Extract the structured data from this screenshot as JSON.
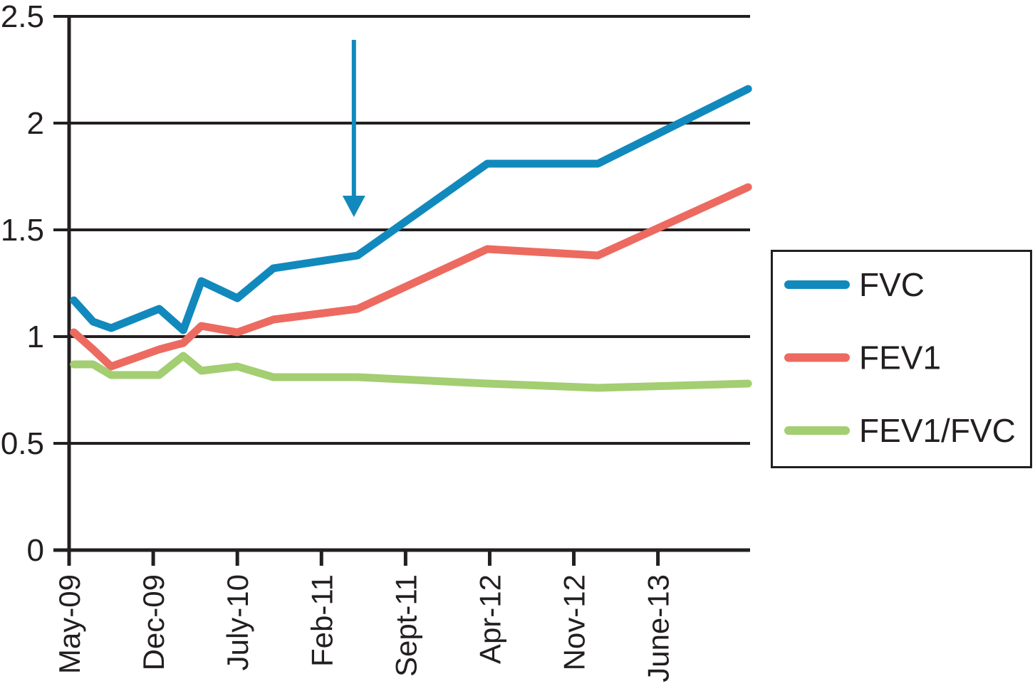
{
  "chart_data": {
    "type": "line",
    "title": "",
    "xlabel": "",
    "ylabel": "",
    "ylim": [
      0,
      2.5
    ],
    "xlim_months": [
      -1.3,
      56.7
    ],
    "grid": true,
    "legend_position": "right",
    "y_ticks": [
      {
        "value": 0,
        "label": "0"
      },
      {
        "value": 0.5,
        "label": "0.5"
      },
      {
        "value": 1,
        "label": "1"
      },
      {
        "value": 1.5,
        "label": "1.5"
      },
      {
        "value": 2,
        "label": "2"
      },
      {
        "value": 2.5,
        "label": "2.5"
      }
    ],
    "x_ticks": [
      {
        "month": 0,
        "label": "May-09"
      },
      {
        "month": 7,
        "label": "Dec-09"
      },
      {
        "month": 14,
        "label": "July-10"
      },
      {
        "month": 21,
        "label": "Feb-11"
      },
      {
        "month": 28,
        "label": "Sept-11"
      },
      {
        "month": 35,
        "label": "Apr-12"
      },
      {
        "month": 42,
        "label": "Nov-12"
      },
      {
        "month": 49,
        "label": "June-13"
      }
    ],
    "series": [
      {
        "name": "FVC",
        "color": "#1189BD",
        "points": [
          [
            0.4,
            1.17
          ],
          [
            2,
            1.07
          ],
          [
            3.5,
            1.04
          ],
          [
            7.5,
            1.13
          ],
          [
            9.5,
            1.03
          ],
          [
            11,
            1.26
          ],
          [
            14,
            1.18
          ],
          [
            17,
            1.32
          ],
          [
            24,
            1.38
          ],
          [
            34.8,
            1.81
          ],
          [
            44,
            1.81
          ],
          [
            56.5,
            2.16
          ]
        ]
      },
      {
        "name": "FEV1",
        "color": "#ED6A60",
        "points": [
          [
            0.4,
            1.02
          ],
          [
            2,
            0.94
          ],
          [
            3.5,
            0.86
          ],
          [
            7.5,
            0.94
          ],
          [
            9.5,
            0.97
          ],
          [
            11,
            1.05
          ],
          [
            14,
            1.02
          ],
          [
            17,
            1.08
          ],
          [
            24,
            1.13
          ],
          [
            34.8,
            1.41
          ],
          [
            44,
            1.38
          ],
          [
            56.5,
            1.7
          ]
        ]
      },
      {
        "name": "FEV1/FVC",
        "color": "#A3CE71",
        "points": [
          [
            0.4,
            0.87
          ],
          [
            2,
            0.87
          ],
          [
            3.5,
            0.82
          ],
          [
            7.5,
            0.82
          ],
          [
            9.5,
            0.91
          ],
          [
            11,
            0.84
          ],
          [
            14,
            0.86
          ],
          [
            17,
            0.81
          ],
          [
            24,
            0.81
          ],
          [
            34.8,
            0.78
          ],
          [
            44,
            0.76
          ],
          [
            56.5,
            0.78
          ]
        ]
      }
    ],
    "annotation_arrow": {
      "x_month": 23.7,
      "y_from": 2.39,
      "y_to": 1.56,
      "color": "#1189BD"
    }
  },
  "colors": {
    "axis": "#231F20",
    "background": "#FFFFFF"
  }
}
